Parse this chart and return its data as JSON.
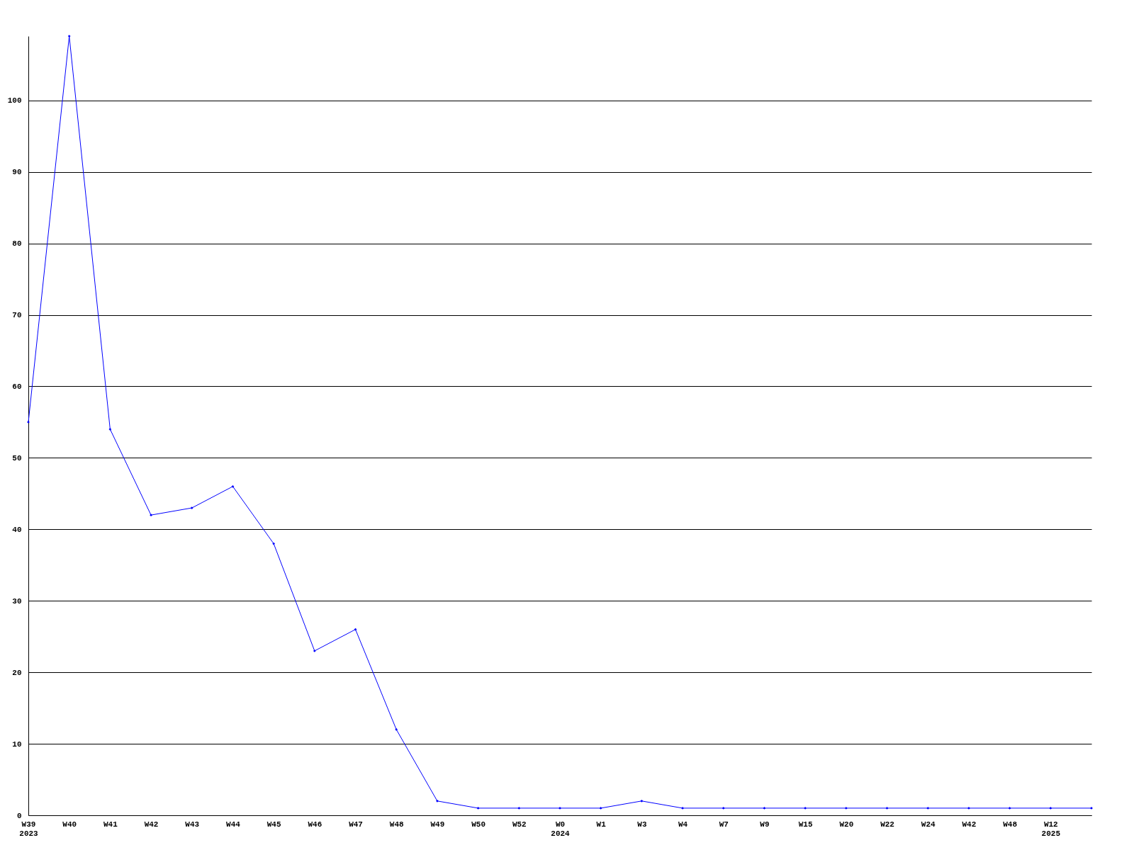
{
  "chart_data": {
    "type": "line",
    "categories": [
      "W39\n2023",
      "W40",
      "W41",
      "W42",
      "W43",
      "W44",
      "W45",
      "W46",
      "W47",
      "W48",
      "W49",
      "W50",
      "W52",
      "W0\n2024",
      "W1",
      "W3",
      "W4",
      "W7",
      "W9",
      "W15",
      "W20",
      "W22",
      "W24",
      "W42",
      "W48",
      "W12\n2025",
      null
    ],
    "series": [
      {
        "color": "#0000ff",
        "values": [
          55,
          109,
          54,
          42,
          43,
          46,
          38,
          23,
          26,
          12,
          2,
          1,
          1,
          1,
          1,
          2,
          1,
          1,
          1,
          1,
          1,
          1,
          1,
          1,
          1,
          1,
          1
        ]
      }
    ],
    "ylim": [
      0,
      109
    ],
    "yticks": [
      0,
      10,
      20,
      30,
      40,
      50,
      60,
      70,
      80,
      90,
      100
    ],
    "grid": "y",
    "marker": "diamond",
    "line_style": "solid"
  }
}
